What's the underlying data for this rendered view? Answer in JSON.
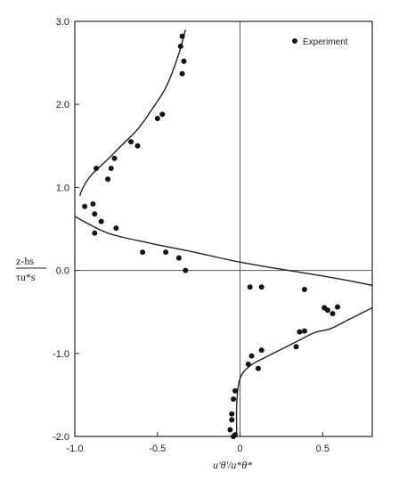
{
  "chart_data": {
    "type": "scatter",
    "title": "",
    "xlabel": "u'θ'/u*θ*",
    "ylabel_top": "z-hs",
    "ylabel_bottom": "τu*s",
    "xlim": [
      -1.0,
      0.8
    ],
    "ylim": [
      -2.0,
      3.0
    ],
    "xticks": [
      {
        "value": -1.0,
        "label": "-1.0"
      },
      {
        "value": -0.5,
        "label": "-0.5"
      },
      {
        "value": 0.0,
        "label": "0"
      },
      {
        "value": 0.5,
        "label": "0.5"
      }
    ],
    "yticks": [
      {
        "value": 3.0,
        "label": "3.0"
      },
      {
        "value": 2.0,
        "label": "2.0"
      },
      {
        "value": 1.0,
        "label": "1.0"
      },
      {
        "value": 0.0,
        "label": "0.0"
      },
      {
        "value": -1.0,
        "label": "-1.0"
      },
      {
        "value": -2.0,
        "label": "-2.0"
      }
    ],
    "grid": false,
    "reference_lines": {
      "x": 0.0,
      "y": 0.0
    },
    "legend": {
      "position": "top-right",
      "entries": [
        {
          "label": "Experiment",
          "marker": "filled-circle"
        }
      ]
    },
    "series": [
      {
        "name": "Experiment",
        "kind": "points",
        "x": [
          -0.35,
          -0.36,
          -0.34,
          -0.35,
          -0.47,
          -0.5,
          -0.62,
          -0.66,
          -0.76,
          -0.78,
          -0.8,
          -0.87,
          -0.94,
          -0.89,
          -0.88,
          -0.84,
          -0.75,
          -0.88,
          -0.59,
          -0.45,
          -0.37,
          -0.33,
          0.06,
          0.13,
          0.39,
          0.51,
          0.53,
          0.56,
          0.59,
          0.39,
          0.36,
          0.34,
          0.13,
          0.07,
          0.11,
          0.05,
          -0.03,
          -0.04,
          -0.05,
          -0.05,
          -0.06,
          -0.03,
          -0.04
        ],
        "y": [
          2.82,
          2.7,
          2.52,
          2.37,
          1.88,
          1.83,
          1.5,
          1.55,
          1.35,
          1.23,
          1.1,
          1.23,
          0.77,
          0.8,
          0.68,
          0.59,
          0.51,
          0.45,
          0.22,
          0.22,
          0.15,
          0.0,
          -0.2,
          -0.2,
          -0.23,
          -0.45,
          -0.48,
          -0.52,
          -0.44,
          -0.73,
          -0.74,
          -0.92,
          -0.96,
          -1.03,
          -1.18,
          -1.13,
          -1.45,
          -1.55,
          -1.73,
          -1.8,
          -1.92,
          -1.98,
          -2.0
        ]
      },
      {
        "name": "",
        "kind": "curve-upper",
        "x": [
          -0.33,
          -0.38,
          -0.45,
          -0.53,
          -0.62,
          -0.72,
          -0.82,
          -0.9,
          -0.95,
          -0.97
        ],
        "y": [
          2.9,
          2.55,
          2.2,
          1.95,
          1.7,
          1.5,
          1.3,
          1.15,
          1.0,
          0.9
        ]
      },
      {
        "name": "",
        "kind": "curve-middle",
        "x": [
          -1.0,
          -0.8,
          -0.55,
          -0.3,
          -0.05,
          0.2,
          0.45,
          0.65,
          0.8
        ],
        "y": [
          0.65,
          0.45,
          0.33,
          0.23,
          0.12,
          0.03,
          -0.05,
          -0.12,
          -0.18
        ]
      },
      {
        "name": "",
        "kind": "curve-lower",
        "x": [
          -0.02,
          -0.02,
          0.0,
          0.06,
          0.15,
          0.25,
          0.35,
          0.45,
          0.55,
          0.65,
          0.75,
          0.8
        ],
        "y": [
          -2.0,
          -1.6,
          -1.3,
          -1.15,
          -1.05,
          -0.95,
          -0.85,
          -0.75,
          -0.7,
          -0.6,
          -0.5,
          -0.45
        ]
      }
    ]
  }
}
